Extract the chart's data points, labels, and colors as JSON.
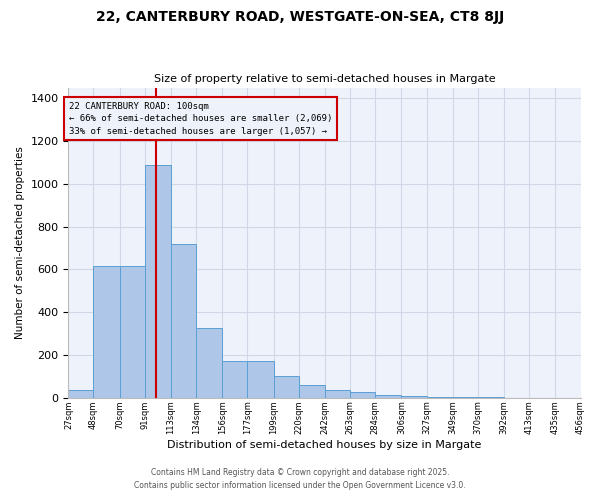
{
  "title1": "22, CANTERBURY ROAD, WESTGATE-ON-SEA, CT8 8JJ",
  "title2": "Size of property relative to semi-detached houses in Margate",
  "xlabel": "Distribution of semi-detached houses by size in Margate",
  "ylabel": "Number of semi-detached properties",
  "bar_left_edges": [
    27,
    48,
    70,
    91,
    113,
    134,
    156,
    177,
    199,
    220,
    242,
    263,
    284,
    306,
    327,
    349,
    370,
    392,
    413,
    435
  ],
  "bar_widths": [
    21,
    22,
    21,
    22,
    21,
    22,
    21,
    22,
    21,
    22,
    21,
    21,
    22,
    21,
    22,
    21,
    22,
    21,
    22,
    21
  ],
  "bar_heights": [
    35,
    615,
    615,
    1090,
    720,
    325,
    170,
    170,
    100,
    60,
    35,
    25,
    15,
    10,
    5,
    3,
    2,
    1,
    1,
    0
  ],
  "bar_color": "#aec6e8",
  "bar_edgecolor": "#5a9fd4",
  "grid_color": "#d0d8e8",
  "property_size": 100,
  "property_label": "22 CANTERBURY ROAD: 100sqm",
  "annotation_line1": "← 66% of semi-detached houses are smaller (2,069)",
  "annotation_line2": "33% of semi-detached houses are larger (1,057) →",
  "redline_color": "#cc0000",
  "ylim": [
    0,
    1450
  ],
  "tick_labels": [
    "27sqm",
    "48sqm",
    "70sqm",
    "91sqm",
    "113sqm",
    "134sqm",
    "156sqm",
    "177sqm",
    "199sqm",
    "220sqm",
    "242sqm",
    "263sqm",
    "284sqm",
    "306sqm",
    "327sqm",
    "349sqm",
    "370sqm",
    "392sqm",
    "413sqm",
    "435sqm",
    "456sqm"
  ],
  "footnote1": "Contains HM Land Registry data © Crown copyright and database right 2025.",
  "footnote2": "Contains public sector information licensed under the Open Government Licence v3.0.",
  "bg_color": "#ffffff",
  "plot_bg_color": "#eef2fa"
}
